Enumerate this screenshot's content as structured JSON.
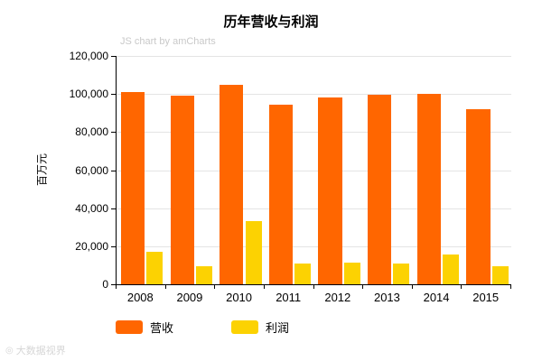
{
  "chart_data": {
    "type": "bar",
    "title": "历年营收与利润",
    "xlabel": "",
    "ylabel": "百万元",
    "categories": [
      "2008",
      "2009",
      "2010",
      "2011",
      "2012",
      "2013",
      "2014",
      "2015"
    ],
    "series": [
      {
        "name": "营收",
        "color": "#FF6600",
        "values": [
          101000,
          99000,
          105000,
          94500,
          98000,
          99500,
          100000,
          92000
        ]
      },
      {
        "name": "利润",
        "color": "#FCD202",
        "values": [
          17000,
          9500,
          33000,
          11000,
          11500,
          11000,
          15500,
          9500
        ]
      }
    ],
    "ylim": [
      0,
      120000
    ],
    "ytick_step": 20000,
    "grid": true,
    "legend_position": "bottom"
  },
  "credits": "JS chart by amCharts",
  "watermark": "大数据视界"
}
